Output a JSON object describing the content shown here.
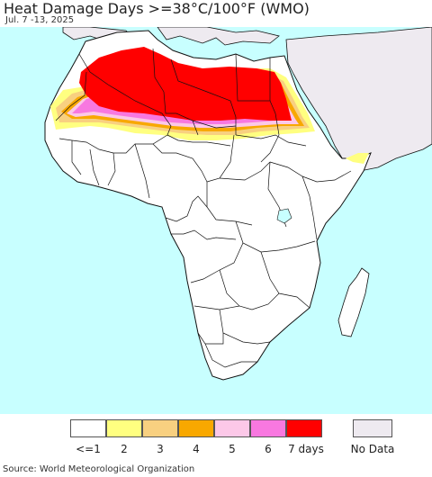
{
  "title": "Heat Damage Days >=38°C/100°F (WMO)",
  "subtitle": "Jul. 7 -13, 2025",
  "source": "Source: World Meteorological Organization",
  "legend": {
    "items": [
      {
        "label": "<=1",
        "color": "#ffffff"
      },
      {
        "label": "2",
        "color": "#ffff80"
      },
      {
        "label": "3",
        "color": "#f8d080"
      },
      {
        "label": "4",
        "color": "#f8a800"
      },
      {
        "label": "5",
        "color": "#fcc8e8"
      },
      {
        "label": "6",
        "color": "#f878e0"
      },
      {
        "label": "7 days",
        "color": "#ff0000"
      }
    ],
    "no_data": {
      "label": "No Data",
      "color": "#eeeaf0"
    }
  },
  "colors": {
    "ocean": "#c8ffff",
    "land": "#ffffff",
    "no_data_land": "#eeeaf0",
    "border": "#111111"
  }
}
